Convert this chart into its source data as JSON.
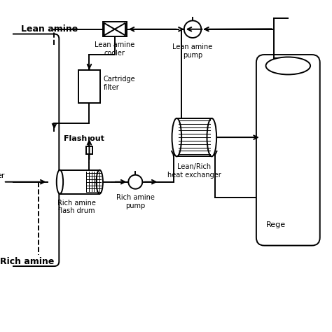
{
  "bg_color": "#ffffff",
  "line_color": "#000000",
  "figsize": [
    4.74,
    4.74
  ],
  "dpi": 100,
  "labels": {
    "lean_amine": "Lean amine",
    "lean_amine_cooler": "Lean amine\ncooler",
    "lean_amine_pump": "Lean amine\npump",
    "cartridge_filter": "Cartridge\nfilter",
    "flash_out": "Flash out",
    "lean_rich_hx": "Lean/Rich\nheat exchanger",
    "rich_amine_flash_drum": "Rich amine\nflash drum",
    "rich_amine_pump": "Rich amine\npump",
    "rich_amine": "Rich amine",
    "regenerator": "Rege"
  }
}
